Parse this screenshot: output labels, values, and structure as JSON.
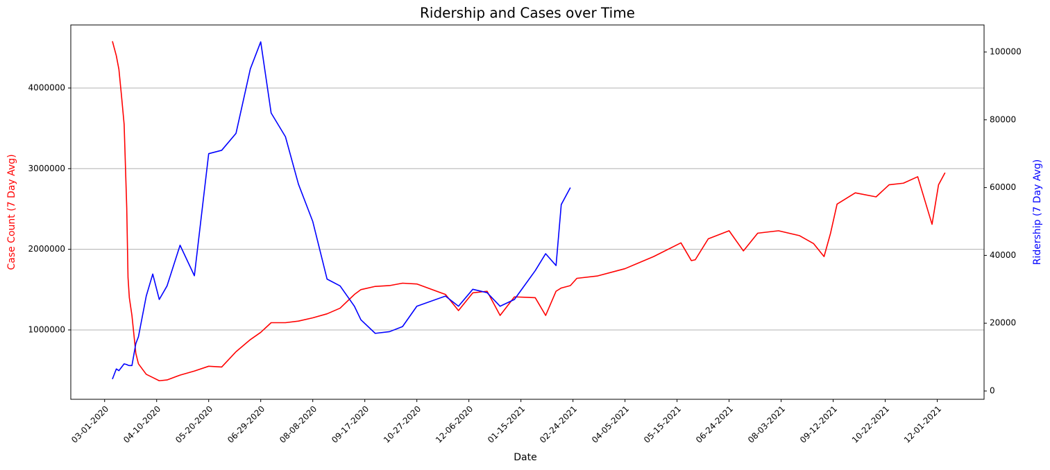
{
  "chart_data": {
    "type": "line",
    "title": "Ridership and Cases over Time",
    "xlabel": "Date",
    "ylabel": "Case Count (7 Day Avg)",
    "y2label": "Ridership (7 Day Avg)",
    "x": [
      "03-07-2020",
      "03-10-2020",
      "03-12-2020",
      "03-14-2020",
      "03-16-2020",
      "03-18-2020",
      "03-19-2020",
      "03-20-2020",
      "03-22-2020",
      "03-25-2020",
      "03-27-2020",
      "04-02-2020",
      "04-07-2020",
      "04-12-2020",
      "04-18-2020",
      "04-28-2020",
      "05-09-2020",
      "05-20-2020",
      "05-30-2020",
      "06-10-2020",
      "06-21-2020",
      "06-29-2020",
      "07-07-2020",
      "07-18-2020",
      "07-28-2020",
      "08-08-2020",
      "08-19-2020",
      "08-29-2020",
      "09-09-2020",
      "09-14-2020",
      "09-25-2020",
      "10-06-2020",
      "10-16-2020",
      "10-27-2020",
      "11-18-2020",
      "11-28-2020",
      "12-09-2020",
      "12-20-2020",
      "12-30-2020",
      "01-10-2021",
      "01-26-2021",
      "02-03-2021",
      "02-11-2021",
      "02-15-2021",
      "02-22-2021",
      "02-27-2021",
      "03-15-2021",
      "04-05-2021",
      "04-27-2021",
      "05-18-2021",
      "05-26-2021",
      "05-29-2021",
      "06-08-2021",
      "06-24-2021",
      "07-05-2021",
      "07-16-2021",
      "08-01-2021",
      "08-17-2021",
      "08-28-2021",
      "09-05-2021",
      "09-10-2021",
      "09-15-2021",
      "09-29-2021",
      "10-15-2021",
      "10-25-2021",
      "11-05-2021",
      "11-16-2021",
      "11-27-2021",
      "12-02-2021",
      "12-07-2021"
    ],
    "series": [
      {
        "name": "Case Count (7 Day Avg)",
        "color": "#ff0000",
        "axis": "y",
        "values": [
          4580000,
          4400000,
          4230000,
          3900000,
          3550000,
          2520000,
          1650000,
          1400000,
          1180000,
          710000,
          580000,
          450000,
          410000,
          370000,
          380000,
          440000,
          490000,
          550000,
          540000,
          730000,
          880000,
          970000,
          1090000,
          1090000,
          1110000,
          1150000,
          1200000,
          1270000,
          1440000,
          1500000,
          1540000,
          1550000,
          1580000,
          1570000,
          1440000,
          1240000,
          1460000,
          1480000,
          1180000,
          1410000,
          1400000,
          1180000,
          1480000,
          1520000,
          1550000,
          1640000,
          1670000,
          1760000,
          1910000,
          2080000,
          1860000,
          1870000,
          2130000,
          2230000,
          1980000,
          2200000,
          2230000,
          2170000,
          2070000,
          1910000,
          2200000,
          2560000,
          2700000,
          2650000,
          2800000,
          2820000,
          2900000,
          2310000,
          2800000,
          2950000
        ]
      },
      {
        "name": "Ridership (7 Day Avg)",
        "color": "#0000ff",
        "axis": "y2",
        "values": [
          3500,
          6500,
          6000,
          7000,
          8000,
          7800,
          7600,
          7500,
          7500,
          14000,
          16000,
          28000,
          34500,
          27000,
          31000,
          43000,
          34000,
          70000,
          71000,
          76000,
          95000,
          103000,
          82000,
          75000,
          61000,
          50000,
          33000,
          31000,
          25000,
          21000,
          17000,
          17500,
          19000,
          25000,
          28000,
          25000,
          30000,
          29000,
          25000,
          27000,
          35500,
          40500,
          37000,
          55000,
          60000,
          null,
          null,
          null,
          null,
          null,
          null,
          null,
          null,
          null,
          null,
          null,
          null,
          null,
          null,
          null,
          null,
          null,
          null,
          null,
          null,
          null,
          null,
          null,
          null,
          null
        ]
      }
    ],
    "xlim": [
      "02-04-2020",
      "01-06-2022"
    ],
    "xticks": [
      "03-01-2020",
      "04-10-2020",
      "05-20-2020",
      "06-29-2020",
      "08-08-2020",
      "09-17-2020",
      "10-27-2020",
      "12-06-2020",
      "01-15-2021",
      "02-24-2021",
      "04-05-2021",
      "05-15-2021",
      "06-24-2021",
      "08-03-2021",
      "09-12-2021",
      "10-22-2021",
      "12-01-2021"
    ],
    "ylim": [
      140000,
      4782000
    ],
    "yticks": [
      1000000,
      2000000,
      3000000,
      4000000
    ],
    "y2lim": [
      -2450,
      107975
    ],
    "y2ticks": [
      0,
      20000,
      40000,
      60000,
      80000,
      100000
    ],
    "grid": true
  }
}
